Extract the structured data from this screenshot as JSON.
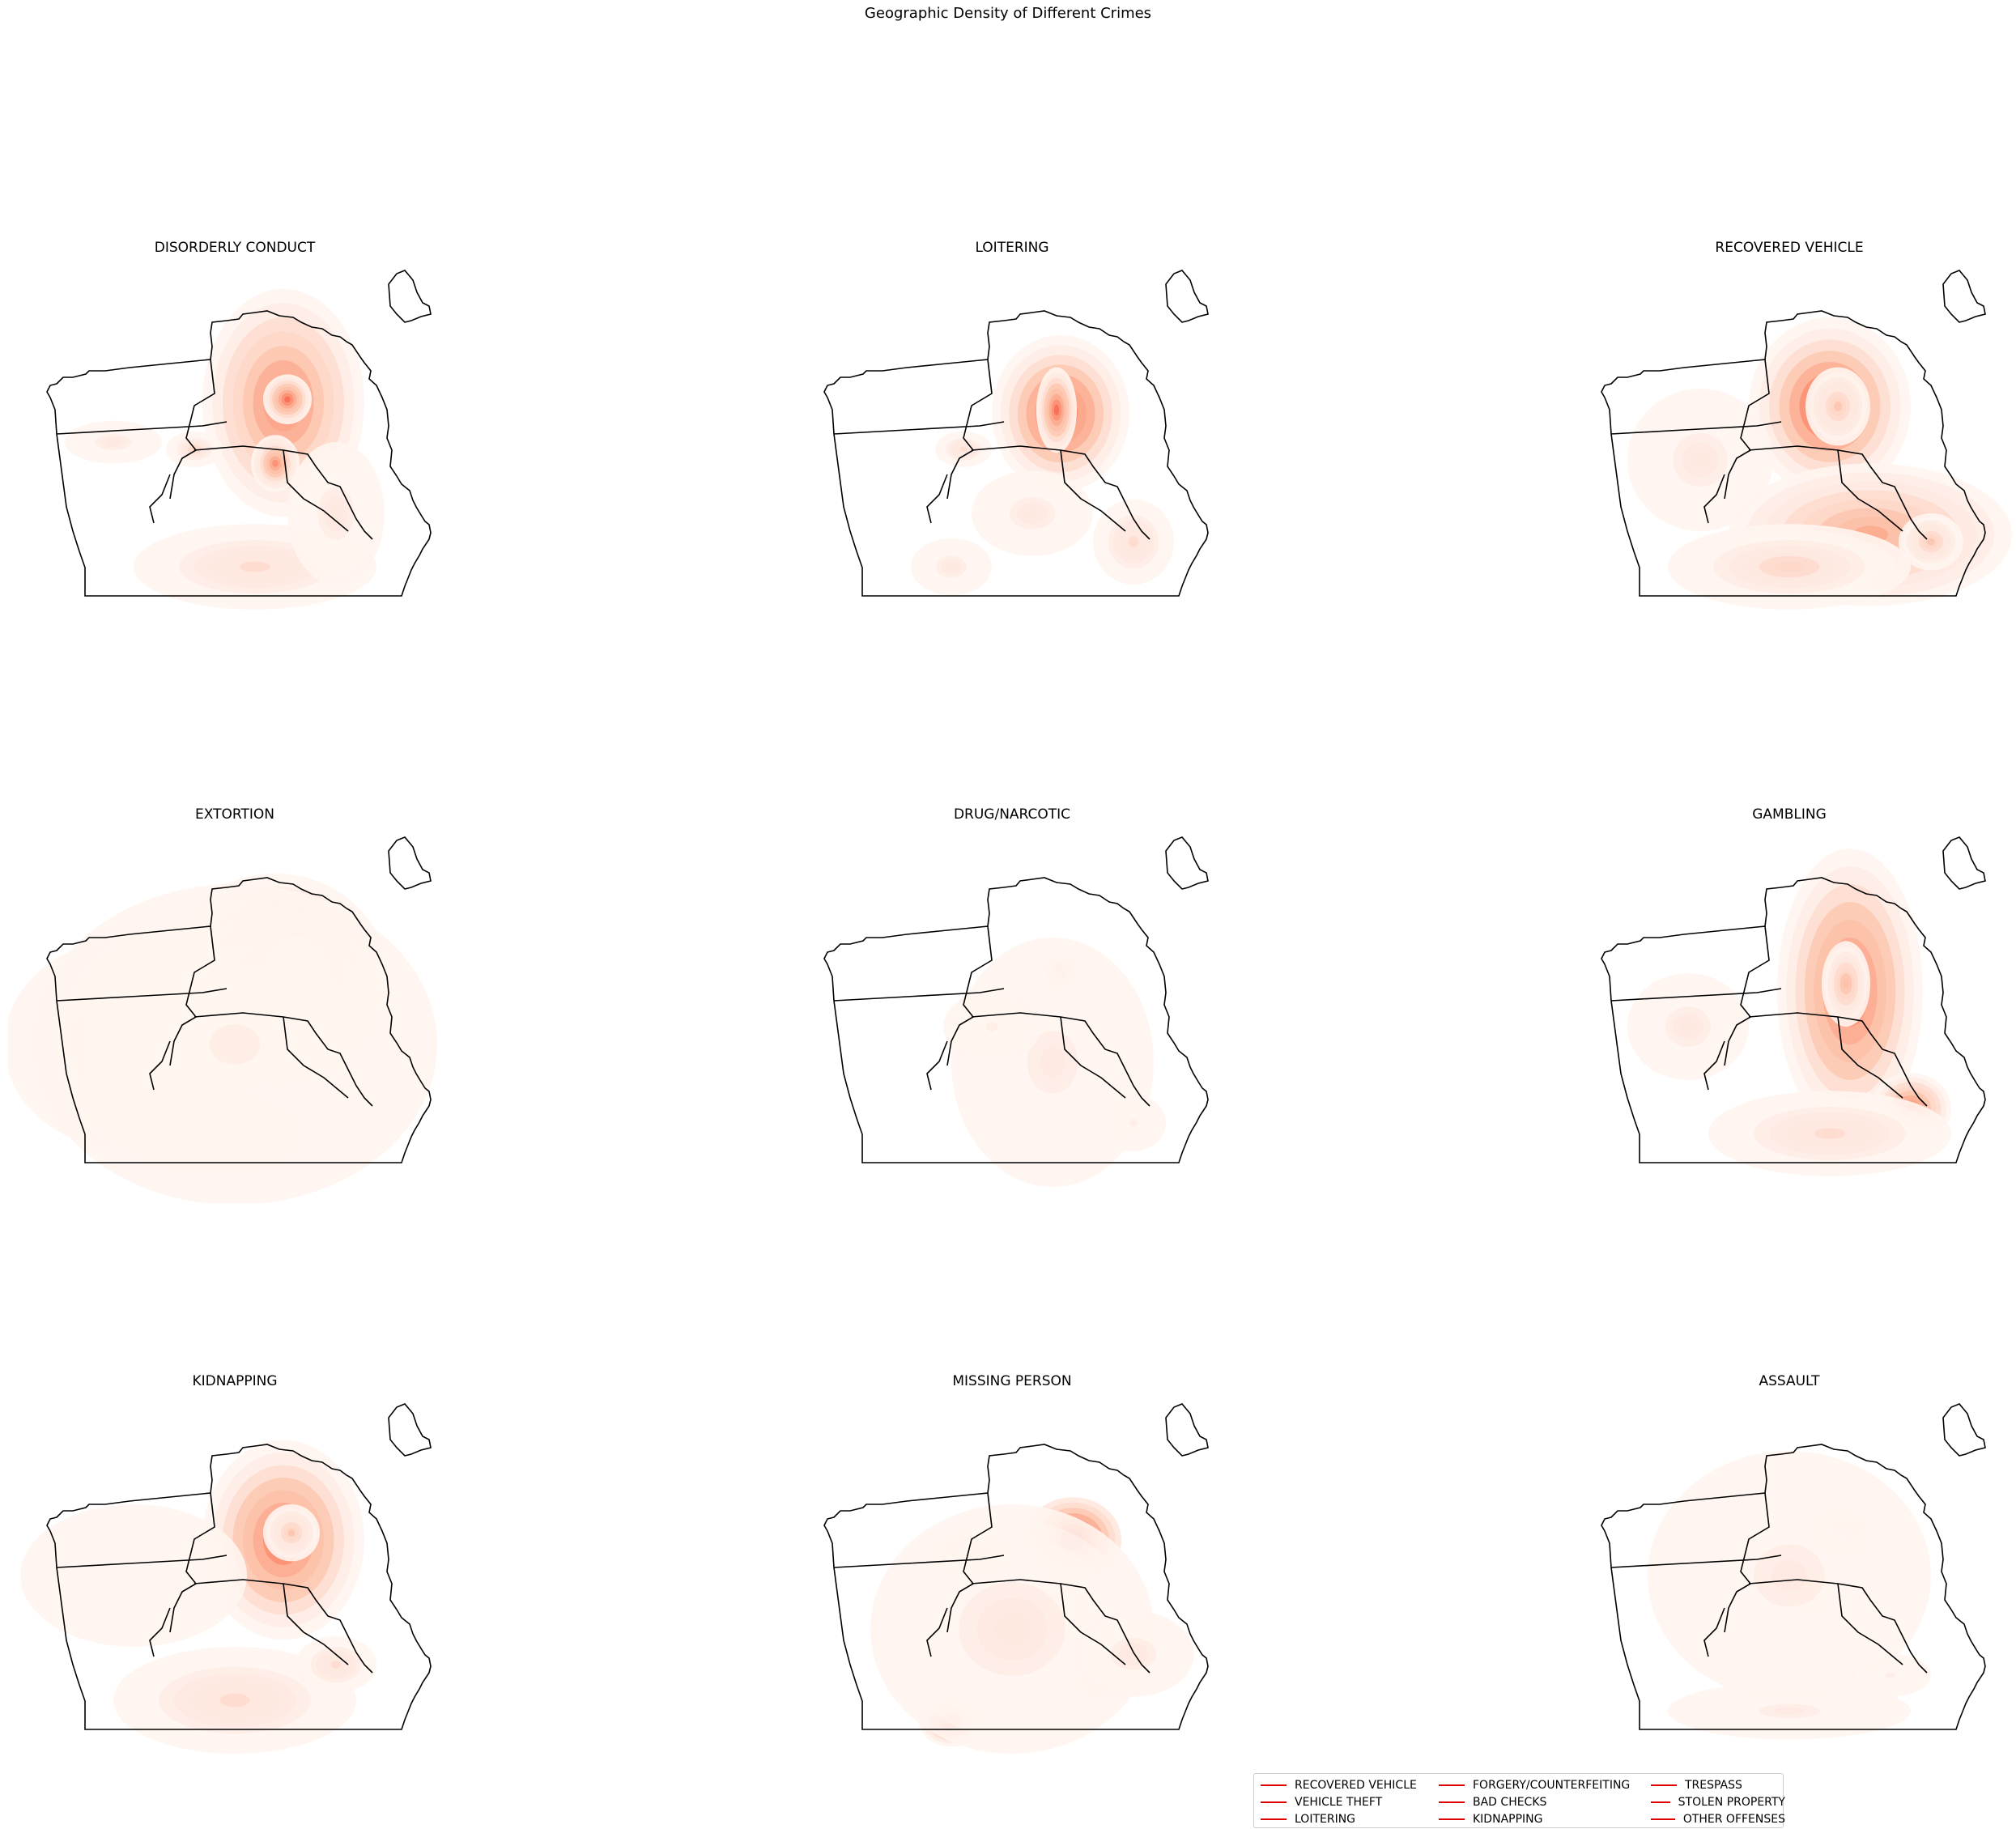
{
  "title": "Geographic Density of Different Crimes",
  "colors": {
    "levels": [
      "#fff5f0",
      "#fee8de",
      "#fdd4c2",
      "#fcbba1",
      "#fc9f81",
      "#fb7c5c",
      "#f5553d",
      "#e32f27",
      "#c3161b",
      "#9e0d14"
    ],
    "boundary": "#000000",
    "legend_line": "#e00000"
  },
  "panels": [
    {
      "title": "DISORDERLY CONDUCT",
      "blobs": [
        [
          0.62,
          0.39,
          0.2,
          0.32,
          0.55
        ],
        [
          0.63,
          0.38,
          0.06,
          0.07,
          0.6
        ],
        [
          0.6,
          0.56,
          0.06,
          0.08,
          0.5
        ],
        [
          0.4,
          0.52,
          0.07,
          0.05,
          0.25
        ],
        [
          0.2,
          0.5,
          0.12,
          0.06,
          0.15
        ],
        [
          0.55,
          0.85,
          0.3,
          0.12,
          0.2
        ],
        [
          0.75,
          0.7,
          0.12,
          0.2,
          0.15
        ]
      ]
    },
    {
      "title": "LOITERING",
      "blobs": [
        [
          0.62,
          0.42,
          0.17,
          0.22,
          0.65
        ],
        [
          0.61,
          0.41,
          0.05,
          0.12,
          0.6
        ],
        [
          0.38,
          0.52,
          0.07,
          0.05,
          0.2
        ],
        [
          0.35,
          0.85,
          0.1,
          0.08,
          0.15
        ],
        [
          0.8,
          0.78,
          0.1,
          0.12,
          0.2
        ],
        [
          0.55,
          0.7,
          0.15,
          0.12,
          0.15
        ]
      ]
    },
    {
      "title": "RECOVERED VEHICLE",
      "blobs": [
        [
          0.6,
          0.4,
          0.2,
          0.25,
          0.75
        ],
        [
          0.62,
          0.4,
          0.08,
          0.11,
          0.3
        ],
        [
          0.7,
          0.76,
          0.35,
          0.2,
          0.45
        ],
        [
          0.85,
          0.78,
          0.08,
          0.08,
          0.3
        ],
        [
          0.28,
          0.55,
          0.18,
          0.2,
          0.15
        ],
        [
          0.5,
          0.85,
          0.3,
          0.12,
          0.25
        ]
      ]
    },
    {
      "title": "EXTORTION",
      "blobs": [
        [
          0.6,
          0.42,
          0.28,
          0.3,
          0.75
        ],
        [
          0.65,
          0.4,
          0.08,
          0.1,
          0.25
        ],
        [
          0.25,
          0.6,
          0.32,
          0.3,
          0.2
        ],
        [
          0.45,
          0.85,
          0.22,
          0.12,
          0.2
        ],
        [
          0.5,
          0.6,
          0.5,
          0.45,
          0.1
        ]
      ]
    },
    {
      "title": "DRUG/NARCOTIC",
      "blobs": [
        [
          0.62,
          0.4,
          0.05,
          0.05,
          0.85
        ],
        [
          0.58,
          0.55,
          0.03,
          0.03,
          0.3
        ],
        [
          0.6,
          0.65,
          0.25,
          0.35,
          0.12
        ],
        [
          0.45,
          0.55,
          0.12,
          0.1,
          0.1
        ],
        [
          0.8,
          0.82,
          0.08,
          0.08,
          0.1
        ]
      ]
    },
    {
      "title": "GAMBLING",
      "blobs": [
        [
          0.65,
          0.45,
          0.18,
          0.4,
          0.6
        ],
        [
          0.64,
          0.43,
          0.06,
          0.12,
          0.35
        ],
        [
          0.8,
          0.78,
          0.1,
          0.1,
          0.55
        ],
        [
          0.25,
          0.55,
          0.15,
          0.15,
          0.15
        ],
        [
          0.6,
          0.85,
          0.3,
          0.12,
          0.2
        ]
      ]
    },
    {
      "title": "KIDNAPPING",
      "blobs": [
        [
          0.62,
          0.4,
          0.2,
          0.28,
          0.6
        ],
        [
          0.64,
          0.38,
          0.07,
          0.08,
          0.3
        ],
        [
          0.25,
          0.5,
          0.28,
          0.2,
          0.08
        ],
        [
          0.5,
          0.85,
          0.3,
          0.15,
          0.2
        ],
        [
          0.75,
          0.75,
          0.1,
          0.08,
          0.2
        ]
      ]
    },
    {
      "title": "MISSING PERSON",
      "blobs": [
        [
          0.65,
          0.4,
          0.12,
          0.12,
          0.85
        ],
        [
          0.4,
          0.44,
          0.1,
          0.07,
          0.45
        ],
        [
          0.65,
          0.6,
          0.08,
          0.07,
          0.55
        ],
        [
          0.74,
          0.78,
          0.1,
          0.07,
          0.8
        ],
        [
          0.35,
          0.91,
          0.08,
          0.07,
          0.6
        ],
        [
          0.5,
          0.65,
          0.35,
          0.35,
          0.15
        ],
        [
          0.8,
          0.72,
          0.15,
          0.12,
          0.15
        ]
      ]
    },
    {
      "title": "ASSAULT",
      "blobs": [
        [
          0.63,
          0.38,
          0.08,
          0.07,
          0.85
        ],
        [
          0.56,
          0.56,
          0.05,
          0.06,
          0.3
        ],
        [
          0.5,
          0.5,
          0.35,
          0.35,
          0.12
        ],
        [
          0.5,
          0.88,
          0.3,
          0.08,
          0.12
        ],
        [
          0.75,
          0.78,
          0.1,
          0.06,
          0.1
        ]
      ]
    }
  ],
  "legend": [
    "RECOVERED VEHICLE",
    "VEHICLE THEFT",
    "LOITERING",
    "FORGERY/COUNTERFEITING",
    "BAD CHECKS",
    "KIDNAPPING",
    "TRESPASS",
    "STOLEN PROPERTY",
    "OTHER OFFENSES"
  ]
}
